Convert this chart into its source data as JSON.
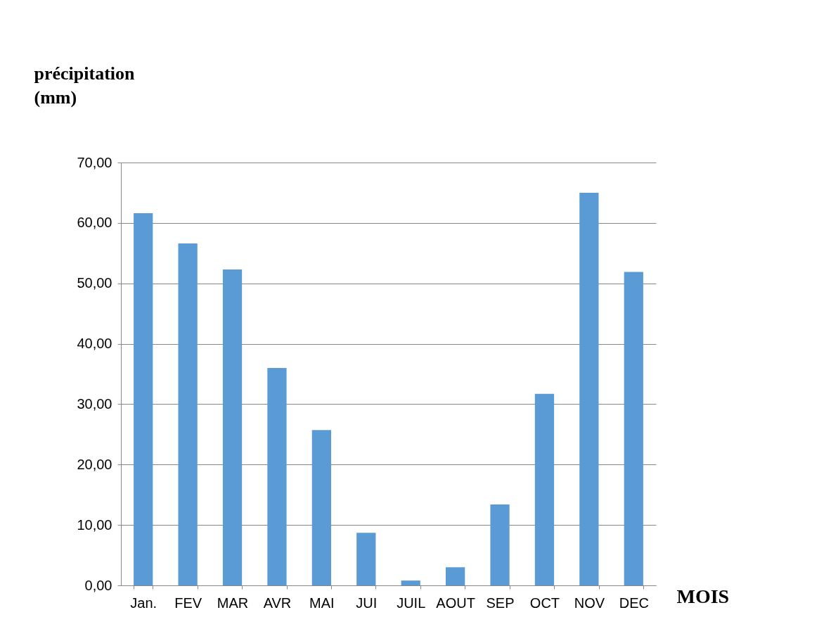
{
  "chart_data": {
    "type": "bar",
    "xlabel": "MOIS",
    "ylabel": "précipitation\n(mm)",
    "categories": [
      "Jan.",
      "FEV",
      "MAR",
      "AVR",
      "MAI",
      "JUI",
      "JUIL",
      "AOUT",
      "SEP",
      "OCT",
      "NOV",
      "DEC"
    ],
    "values": [
      61.6,
      56.6,
      52.3,
      36.0,
      25.7,
      8.7,
      0.8,
      3.0,
      13.4,
      31.7,
      65.0,
      51.9
    ],
    "color": "#5b9bd5",
    "ylim": [
      0,
      70
    ],
    "yticks": [
      {
        "value": 0,
        "label": "0,00"
      },
      {
        "value": 10,
        "label": "10,00"
      },
      {
        "value": 20,
        "label": "20,00"
      },
      {
        "value": 30,
        "label": "30,00"
      },
      {
        "value": 40,
        "label": "40,00"
      },
      {
        "value": 50,
        "label": "50,00"
      },
      {
        "value": 60,
        "label": "60,00"
      },
      {
        "value": 70,
        "label": "70,00"
      }
    ],
    "grid": "y"
  }
}
